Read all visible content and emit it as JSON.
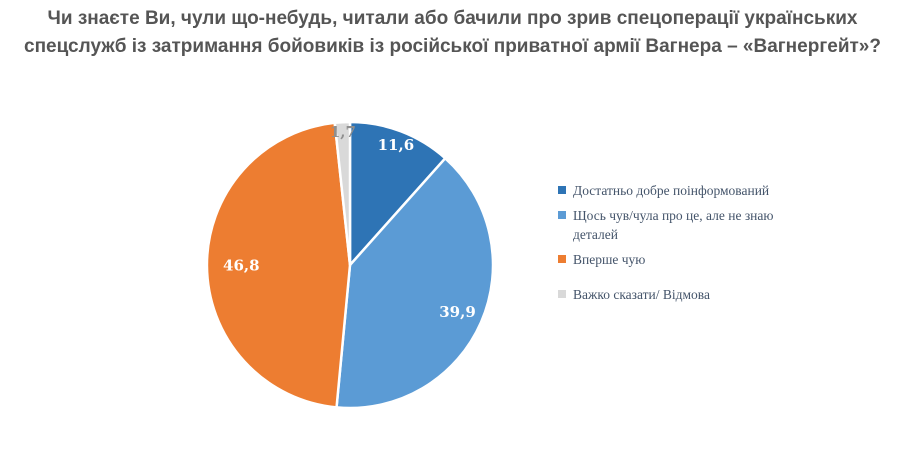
{
  "title": {
    "line1": "Чи знаєте Ви, чули що-небудь, читали або бачили про зрив спецоперації українських",
    "line2": "спецслужб із затримання бойовиків із російської приватної армії Вагнера  – «Вагнергейт»?"
  },
  "chart_data": {
    "type": "pie",
    "title": "Чи знаєте Ви, чули що-небудь, читали або бачили про зрив спецоперації українських спецслужб із затримання бойовиків із російської приватної армії Вагнера – «Вагнергейт»?",
    "categories": [
      "Достатньо добре поінформований",
      "Щось чув/чула про це, але не знаю деталей",
      "Вперше чую",
      "Важко сказати/ Відмова"
    ],
    "values": [
      11.6,
      39.9,
      46.8,
      1.7
    ],
    "labels": [
      "11,6",
      "39,9",
      "46,8",
      "1,7"
    ],
    "slice_colors": [
      "#2E74B5",
      "#5B9BD5",
      "#ED7D31",
      "#D9D9D9"
    ],
    "label_colors": [
      "#FFFFFF",
      "#FFFFFF",
      "#FFFFFF",
      "#8E8E8E"
    ],
    "label_radius": [
      0.9,
      0.82,
      0.76,
      0.93
    ],
    "start_angle_deg": 0,
    "direction": "clockwise",
    "units": "%",
    "legend_position": "right",
    "separator_color": "#FFFFFF",
    "title_color": "#555555",
    "legend_text_color": "#44546A"
  }
}
